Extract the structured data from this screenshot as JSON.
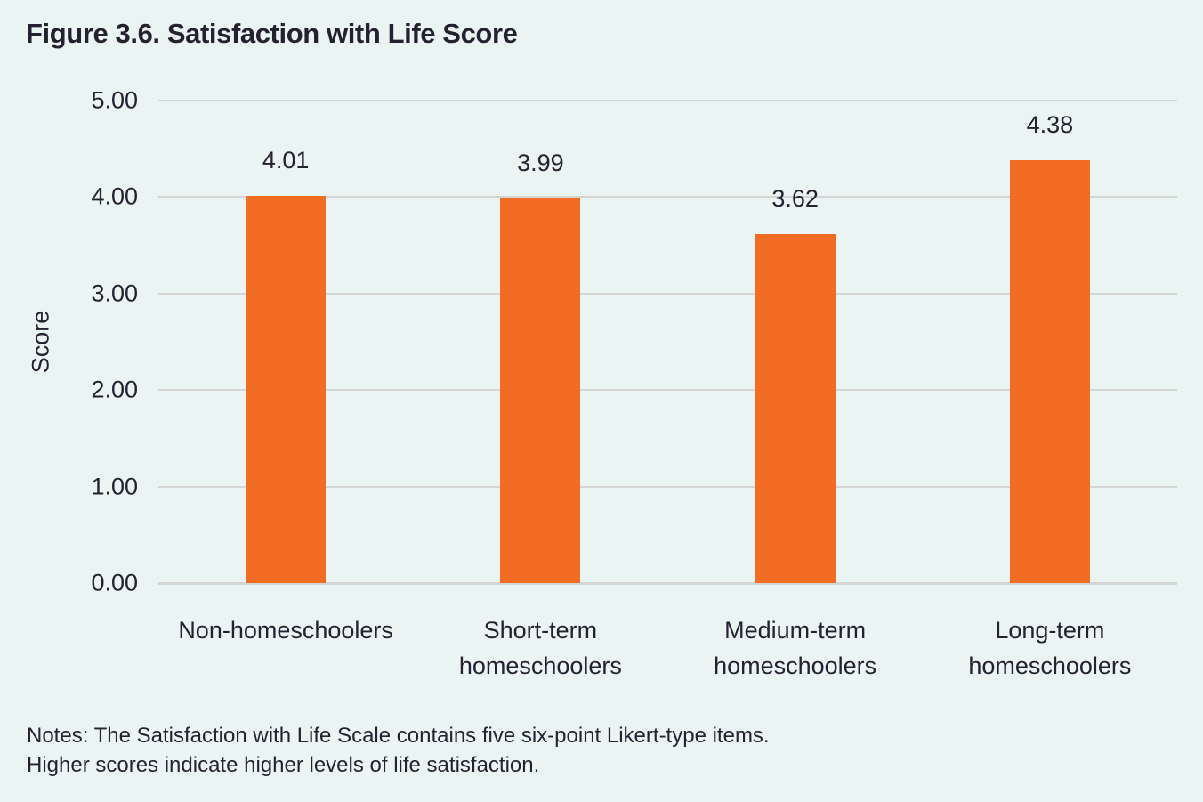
{
  "figure": {
    "title": "Figure 3.6. Satisfaction with Life Score",
    "notes_lines": [
      "Notes: The Satisfaction with Life Scale contains five six-point Likert-type items.",
      "Higher scores indicate higher levels of life satisfaction."
    ]
  },
  "chart_data": {
    "type": "bar",
    "title": "Figure 3.6. Satisfaction with Life Score",
    "xlabel": "",
    "ylabel": "Score",
    "categories": [
      "Non-homeschoolers",
      "Short-term homeschoolers",
      "Medium-term homeschoolers",
      "Long-term homeschoolers"
    ],
    "categories_lines": [
      [
        "Non-homeschoolers"
      ],
      [
        "Short-term",
        "homeschoolers"
      ],
      [
        "Medium-term",
        "homeschoolers"
      ],
      [
        "Long-term",
        "homeschoolers"
      ]
    ],
    "values": [
      4.01,
      3.99,
      3.62,
      4.38
    ],
    "value_labels": [
      "4.01",
      "3.99",
      "3.62",
      "4.38"
    ],
    "ylim": [
      0,
      5
    ],
    "ytick_interval": 1,
    "ytick_labels": [
      "0.00",
      "1.00",
      "2.00",
      "3.00",
      "4.00",
      "5.00"
    ],
    "grid": "horizontal",
    "legend": "none",
    "bar_color": "#f26c23",
    "background_color": "#eaf5f3",
    "gridline_color": "#d3d6d5",
    "text_color": "#242130"
  }
}
